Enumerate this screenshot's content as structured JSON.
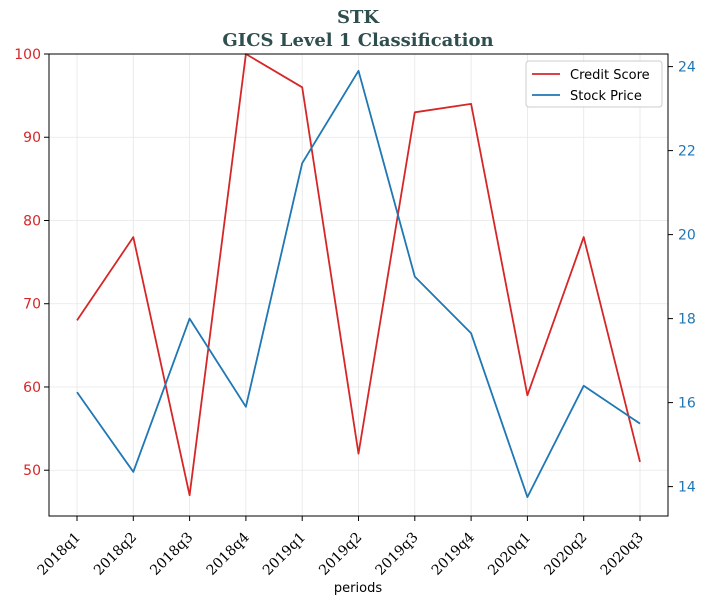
{
  "chart_data": {
    "type": "line",
    "title": "STK",
    "subtitle": "GICS Level 1 Classification",
    "xlabel": "periods",
    "ylabel_left": "",
    "ylabel_right": "",
    "categories": [
      "2018q1",
      "2018q2",
      "2018q3",
      "2018q4",
      "2019q1",
      "2019q2",
      "2019q3",
      "2019q4",
      "2020q1",
      "2020q2",
      "2020q3"
    ],
    "ylim_left": [
      44.5,
      100
    ],
    "ylim_right": [
      13.3,
      24.3
    ],
    "yticks_left": [
      50,
      60,
      70,
      80,
      90,
      100
    ],
    "yticks_right": [
      14,
      16,
      18,
      20,
      22,
      24
    ],
    "grid": true,
    "legend_position": "top-right",
    "series": [
      {
        "name": "Credit Score",
        "axis": "left",
        "color": "#d62728",
        "values": [
          68,
          78,
          47,
          100,
          96,
          52,
          93,
          94,
          59,
          78,
          51
        ]
      },
      {
        "name": "Stock Price",
        "axis": "right",
        "color": "#1f77b4",
        "values": [
          16.25,
          14.35,
          18.0,
          15.9,
          21.7,
          23.9,
          19.0,
          17.65,
          13.75,
          16.4,
          15.5
        ]
      }
    ]
  }
}
